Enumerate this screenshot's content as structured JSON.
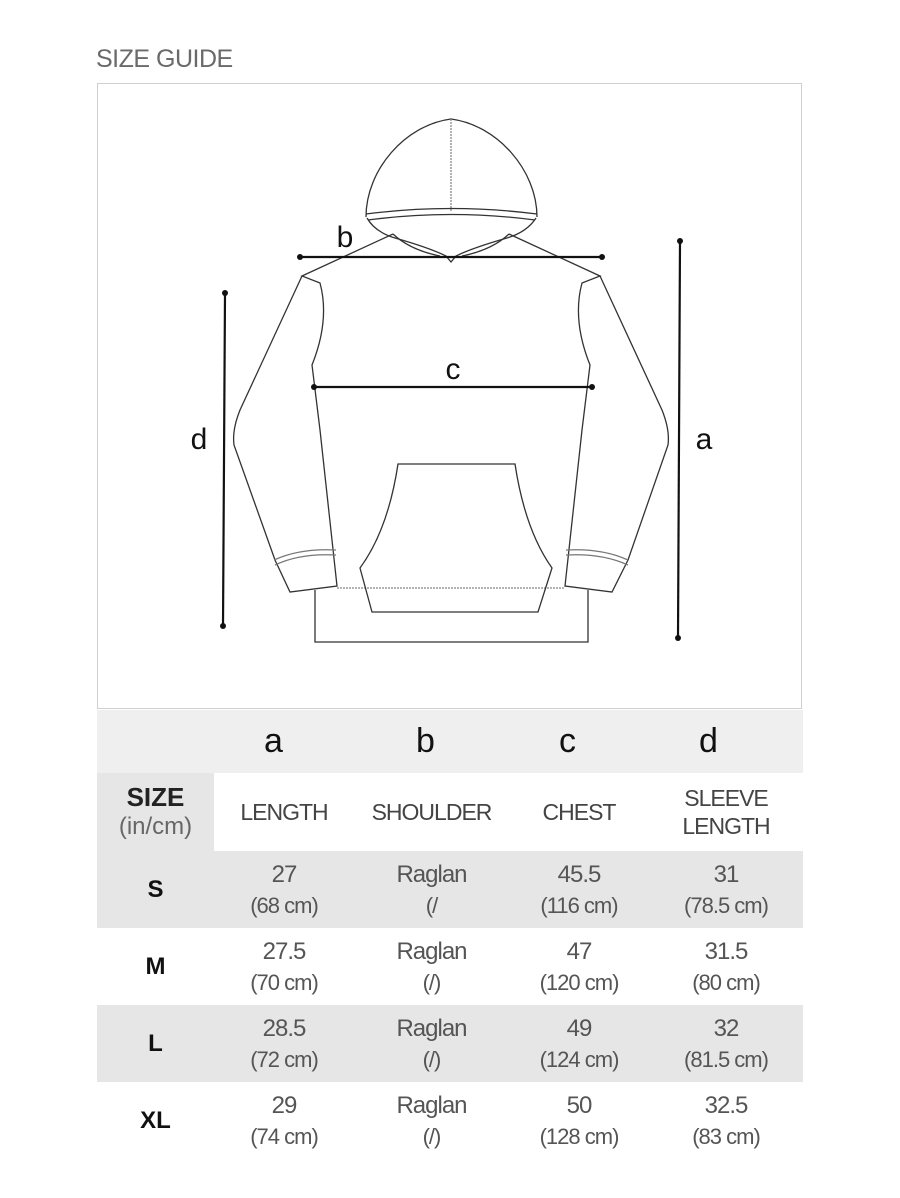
{
  "title": "SIZE GUIDE",
  "diagram": {
    "labels": {
      "a": "a",
      "b": "b",
      "c": "c",
      "d": "d"
    }
  },
  "table": {
    "letters": [
      "a",
      "b",
      "c",
      "d"
    ],
    "size_header": {
      "main": "SIZE",
      "unit": "(in/cm)"
    },
    "columns": [
      "LENGTH",
      "SHOULDER",
      "CHEST",
      "SLEEVE LENGTH"
    ],
    "rows": [
      {
        "size": "S",
        "cells": [
          [
            "27",
            "(68 cm)"
          ],
          [
            "Raglan",
            "(/"
          ],
          [
            "45.5",
            "(116 cm)"
          ],
          [
            "31",
            "(78.5 cm)"
          ]
        ]
      },
      {
        "size": "M",
        "cells": [
          [
            "27.5",
            "(70 cm)"
          ],
          [
            "Raglan",
            "(/)"
          ],
          [
            "47",
            "(120 cm)"
          ],
          [
            "31.5",
            "(80 cm)"
          ]
        ]
      },
      {
        "size": "L",
        "cells": [
          [
            "28.5",
            "(72 cm)"
          ],
          [
            "Raglan",
            "(/)"
          ],
          [
            "49",
            "(124 cm)"
          ],
          [
            "32",
            "(81.5 cm)"
          ]
        ]
      },
      {
        "size": "XL",
        "cells": [
          [
            "29",
            "(74 cm)"
          ],
          [
            "Raglan",
            "(/)"
          ],
          [
            "50",
            "(128 cm)"
          ],
          [
            "32.5",
            "(83 cm)"
          ]
        ]
      }
    ]
  }
}
